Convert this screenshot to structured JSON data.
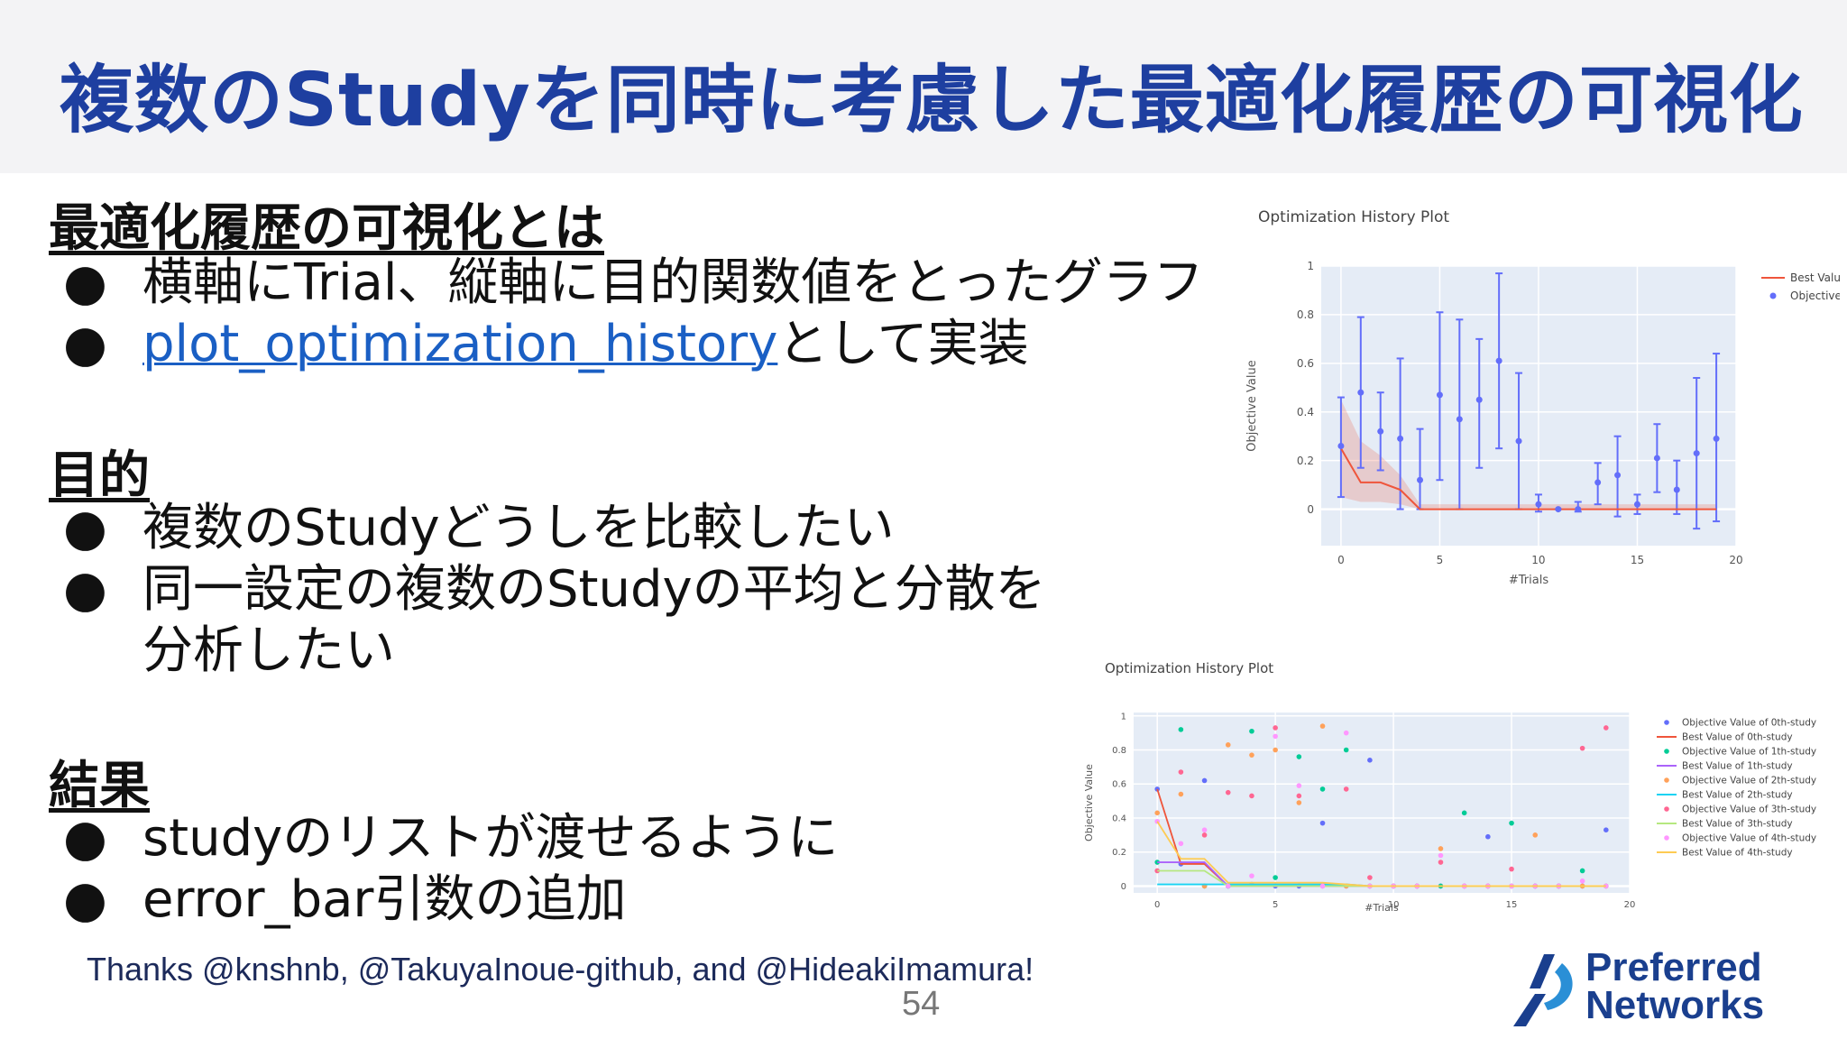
{
  "slide": {
    "title": "複数のStudyを同時に考慮した最適化履歴の可視化",
    "sections": [
      {
        "heading": "最適化履歴の可視化とは",
        "bullets": [
          {
            "text": "横軸にTrial、縦軸に目的関数値をとったグラフ"
          },
          {
            "link": "plot_optimization_history",
            "text": "として実装"
          }
        ]
      },
      {
        "heading": "目的",
        "bullets": [
          {
            "text": "複数のStudyどうしを比較したい"
          },
          {
            "text": "同一設定の複数のStudyの平均と分散を分析したい"
          }
        ]
      },
      {
        "heading": "結果",
        "bullets": [
          {
            "text": "studyのリストが渡せるように"
          },
          {
            "text": "error_bar引数の追加"
          }
        ]
      }
    ],
    "bullet_glyph": "●",
    "thanks": "Thanks @knshnb, @TakuyaInoue-github, and @HideakiImamura!",
    "page_number": "54",
    "logo": {
      "line1": "Preferred",
      "line2": "Networks",
      "icon": "preferred-networks-logo-icon",
      "color": "#1a3f8e"
    },
    "accent_color": "#1e3fa0",
    "link_color": "#1a5fc4"
  },
  "chart_data": [
    {
      "type": "line",
      "title": "Optimization History Plot",
      "xlabel": "#Trials",
      "ylabel": "Objective Value",
      "xlim": [
        -1,
        20
      ],
      "ylim": [
        -0.15,
        1
      ],
      "x_ticks": [
        "0",
        "5",
        "10",
        "15",
        "20"
      ],
      "y_ticks": [
        "0",
        "0.2",
        "0.4",
        "0.6",
        "0.8",
        "1"
      ],
      "grid": true,
      "legend_position": "top-right",
      "series": [
        {
          "name": "Best Value",
          "color": "#ef553b",
          "points": [
            [
              0,
              0.25
            ],
            [
              1,
              0.11
            ],
            [
              2,
              0.11
            ],
            [
              3,
              0.08
            ],
            [
              4,
              0.0
            ],
            [
              5,
              0.0
            ],
            [
              6,
              0.0
            ],
            [
              7,
              0.0
            ],
            [
              8,
              0.0
            ],
            [
              9,
              0.0
            ],
            [
              10,
              0.0
            ],
            [
              11,
              0.0
            ],
            [
              12,
              0.0
            ],
            [
              13,
              0.0
            ],
            [
              14,
              0.0
            ],
            [
              15,
              0.0
            ],
            [
              16,
              0.0
            ],
            [
              17,
              0.0
            ],
            [
              18,
              0.0
            ],
            [
              19,
              0.0
            ]
          ],
          "band_upper": [
            0.45,
            0.28,
            0.22,
            0.14,
            0.02,
            0.02,
            0.02,
            0.02,
            0.02,
            0.02,
            0.02,
            0.02,
            0.02,
            0.02,
            0.02,
            0.02,
            0.02,
            0.02,
            0.02,
            0.02
          ],
          "band_lower": [
            0.05,
            0.03,
            0.03,
            0.02,
            0.0,
            0.0,
            0.0,
            0.0,
            0.0,
            0.0,
            0.0,
            0.0,
            0.0,
            0.0,
            0.0,
            0.0,
            0.0,
            0.0,
            0.0,
            0.0
          ]
        },
        {
          "name": "Objective Value",
          "color": "#636efa",
          "points": [
            [
              0,
              0.26
            ],
            [
              1,
              0.48
            ],
            [
              2,
              0.32
            ],
            [
              3,
              0.29
            ],
            [
              4,
              0.12
            ],
            [
              5,
              0.47
            ],
            [
              6,
              0.37
            ],
            [
              7,
              0.45
            ],
            [
              8,
              0.61
            ],
            [
              9,
              0.28
            ],
            [
              10,
              0.02
            ],
            [
              11,
              0.0
            ],
            [
              12,
              0.0
            ],
            [
              13,
              0.11
            ],
            [
              14,
              0.14
            ],
            [
              15,
              0.02
            ],
            [
              16,
              0.21
            ],
            [
              17,
              0.08
            ],
            [
              18,
              0.23
            ],
            [
              19,
              0.29
            ]
          ],
          "err_hi": [
            0.46,
            0.79,
            0.48,
            0.62,
            0.33,
            0.81,
            0.78,
            0.7,
            0.97,
            0.56,
            0.06,
            0.0,
            0.03,
            0.19,
            0.3,
            0.06,
            0.35,
            0.2,
            0.54,
            0.64
          ],
          "err_lo": [
            0.05,
            0.17,
            0.16,
            0.0,
            0.0,
            0.12,
            0.0,
            0.17,
            0.25,
            0.0,
            -0.01,
            0.0,
            -0.01,
            0.02,
            -0.03,
            -0.02,
            0.07,
            -0.02,
            -0.08,
            -0.05
          ]
        }
      ]
    },
    {
      "type": "scatter",
      "title": "Optimization History Plot",
      "xlabel": "#Trials",
      "ylabel": "Objective Value",
      "xlim": [
        -1,
        20
      ],
      "ylim": [
        -0.04,
        1.02
      ],
      "x_ticks": [
        "0",
        "5",
        "10",
        "15",
        "20"
      ],
      "y_ticks": [
        "0",
        "0.2",
        "0.4",
        "0.6",
        "0.8",
        "1"
      ],
      "grid": true,
      "legend_position": "right",
      "series": [
        {
          "name": "Objective Value of 0th-study",
          "color": "#636efa",
          "values": [
            0.57,
            0.13,
            0.62,
            0.0,
            0.01,
            0.0,
            0.0,
            0.37,
            0.0,
            0.74,
            0.0,
            0.0,
            0.0,
            0.0,
            0.29,
            0.0,
            0.0,
            0.0,
            0.0,
            0.33
          ]
        },
        {
          "name": "Best Value of 0th-study",
          "color": "#ef553b",
          "values": [
            0.57,
            0.13,
            0.13,
            0.0,
            0.0,
            0.0,
            0.0,
            0.0,
            0.0,
            0.0,
            0.0,
            0.0,
            0.0,
            0.0,
            0.0,
            0.0,
            0.0,
            0.0,
            0.0,
            0.0
          ]
        },
        {
          "name": "Objective Value of 1th-study",
          "color": "#00cc96",
          "values": [
            0.14,
            0.92,
            0.0,
            0.0,
            0.91,
            0.05,
            0.76,
            0.57,
            0.8,
            0.0,
            0.0,
            0.0,
            0.0,
            0.43,
            0.0,
            0.37,
            0.0,
            0.0,
            0.09,
            0.0
          ]
        },
        {
          "name": "Best Value of 1th-study",
          "color": "#ab63fa",
          "values": [
            0.14,
            0.14,
            0.14,
            0.0,
            0.0,
            0.0,
            0.0,
            0.0,
            0.0,
            0.0,
            0.0,
            0.0,
            0.0,
            0.0,
            0.0,
            0.0,
            0.0,
            0.0,
            0.0,
            0.0
          ]
        },
        {
          "name": "Objective Value of 2th-study",
          "color": "#ffa15a",
          "values": [
            0.43,
            0.54,
            0.0,
            0.83,
            0.77,
            0.8,
            0.49,
            0.94,
            0.0,
            0.0,
            0.0,
            0.0,
            0.22,
            0.0,
            0.0,
            0.0,
            0.3,
            0.0,
            0.0,
            0.0
          ]
        },
        {
          "name": "Best Value of 2th-study",
          "color": "#19d3f3",
          "values": [
            0.01,
            0.01,
            0.01,
            0.01,
            0.01,
            0.01,
            0.01,
            0.01,
            0.01,
            0.0,
            0.0,
            0.0,
            0.0,
            0.0,
            0.0,
            0.0,
            0.0,
            0.0,
            0.0,
            0.0
          ]
        },
        {
          "name": "Objective Value of 3th-study",
          "color": "#ff6692",
          "values": [
            0.09,
            0.67,
            0.3,
            0.55,
            0.53,
            0.93,
            0.53,
            0.0,
            0.57,
            0.05,
            0.0,
            0.0,
            0.14,
            0.0,
            0.0,
            0.1,
            0.0,
            0.0,
            0.81,
            0.93
          ]
        },
        {
          "name": "Best Value of 3th-study",
          "color": "#b6e880",
          "values": [
            0.09,
            0.09,
            0.09,
            0.0,
            0.0,
            0.0,
            0.0,
            0.0,
            0.0,
            0.0,
            0.0,
            0.0,
            0.0,
            0.0,
            0.0,
            0.0,
            0.0,
            0.0,
            0.0,
            0.0
          ]
        },
        {
          "name": "Objective Value of 4th-study",
          "color": "#ff97ff",
          "values": [
            0.38,
            0.25,
            0.33,
            0.0,
            0.06,
            0.88,
            0.59,
            0.0,
            0.9,
            0.0,
            0.0,
            0.0,
            0.18,
            0.0,
            0.0,
            0.0,
            0.0,
            0.0,
            0.03,
            0.0
          ]
        },
        {
          "name": "Best Value of 4th-study",
          "color": "#fecb52",
          "values": [
            0.38,
            0.16,
            0.16,
            0.02,
            0.02,
            0.02,
            0.02,
            0.02,
            0.01,
            0.0,
            0.0,
            0.0,
            0.0,
            0.0,
            0.0,
            0.0,
            0.0,
            0.0,
            0.0,
            0.0
          ]
        }
      ]
    }
  ]
}
